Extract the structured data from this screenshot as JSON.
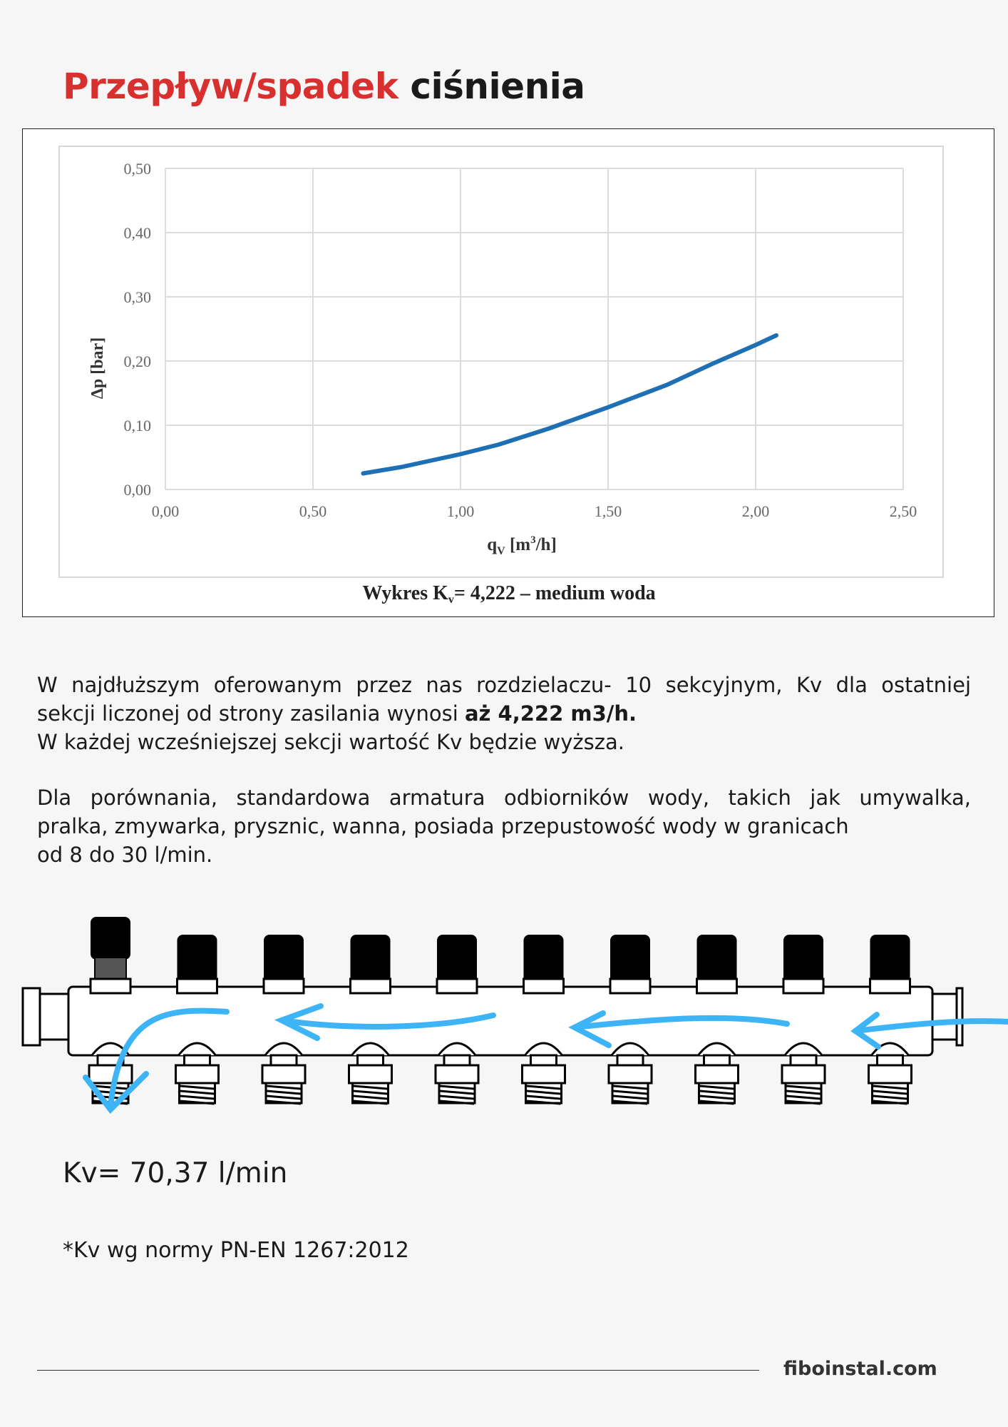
{
  "title": {
    "part_red": "Przepływ/spadek",
    "part_black": "ciśnienia",
    "accent_color": "#d7302f"
  },
  "chart_data": {
    "type": "line",
    "title": "",
    "caption": "Wykres Kv= 4,222 – medium woda",
    "caption_parts": {
      "pre": "Wykres K",
      "sub": "v",
      "post": "= 4,222 – medium woda"
    },
    "xlabel": "qV [m3/h]",
    "xlabel_parts": {
      "q": "q",
      "sub": "V",
      "mid": " [m",
      "sup": "3",
      "end": "/h]"
    },
    "ylabel": "Δp [bar]",
    "xlim": [
      0,
      2.5
    ],
    "ylim": [
      0,
      0.5
    ],
    "x_ticks": [
      "0,00",
      "0,50",
      "1,00",
      "1,50",
      "2,00",
      "2,50"
    ],
    "y_ticks": [
      "0,00",
      "0,10",
      "0,20",
      "0,30",
      "0,40",
      "0,50"
    ],
    "grid": true,
    "line_color": "#1f6fb5",
    "series": [
      {
        "x": [
          0.67,
          0.8,
          0.9,
          1.0,
          1.13,
          1.3,
          1.5,
          1.7,
          1.85,
          2.0,
          2.07
        ],
        "y": [
          0.025,
          0.035,
          0.045,
          0.055,
          0.07,
          0.095,
          0.128,
          0.163,
          0.195,
          0.225,
          0.24
        ]
      }
    ]
  },
  "paragraph1": {
    "line1": "W najdłuższym oferowanym przez nas rozdzielaczu- 10 sekcyjnym, Kv dla ostatniej",
    "line2_pre": "sekcji liczonej od strony zasilania wynosi ",
    "line2_bold": "aż 4,222 m3/h.",
    "line3": "W każdej wcześniejszej sekcji wartość Kv będzie wyższa."
  },
  "paragraph2": {
    "line1": "Dla porównania, standardowa armatura odbiorników wody, takich jak umywalka,",
    "line2": "pralka, zmywarka, prysznic, wanna, posiada przepustowość wody w granicach",
    "line3": "od 8 do 30 l/min."
  },
  "diagram": {
    "sections": 10,
    "arrow_color": "#3db4f5",
    "icon": "manifold-flow-diagram"
  },
  "kv_value": "Kv= 70,37 l/min",
  "footnote": "*Kv wg normy PN-EN 1267:2012",
  "footer": {
    "site": "fiboinstal.com"
  }
}
